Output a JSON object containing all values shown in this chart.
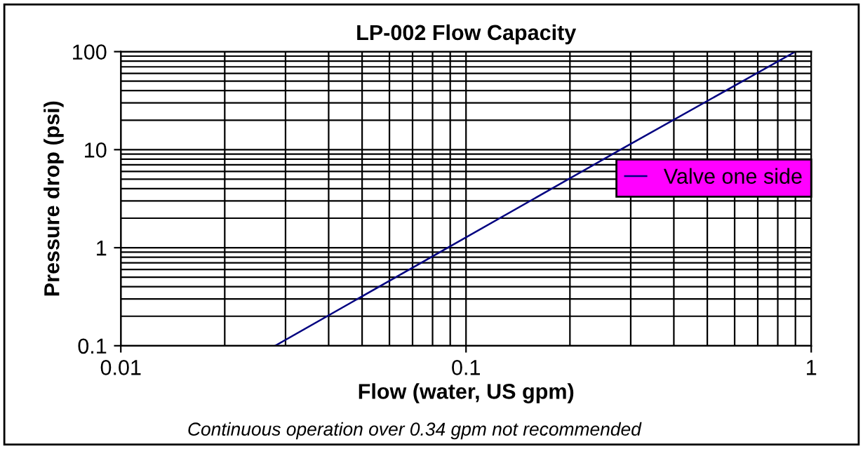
{
  "chart_data": {
    "type": "line",
    "title": "LP-002 Flow Capacity",
    "xlabel": "Flow (water, US gpm)",
    "ylabel": "Pressure drop (psi)",
    "annotations": [
      "Continuous operation over 0.34 gpm not recommended"
    ],
    "series": [
      {
        "name": "Valve one side",
        "color": "#000080",
        "x": [
          0.028,
          0.0885,
          0.28,
          0.9
        ],
        "values": [
          0.1,
          1,
          10,
          100
        ]
      }
    ],
    "log": "xy",
    "xlim": [
      0.01,
      1
    ],
    "ylim": [
      0.1,
      100
    ],
    "xticks": [
      0.01,
      0.1,
      1
    ],
    "yticks": [
      0.1,
      1,
      10,
      100
    ],
    "grid": true,
    "legend": "right",
    "marker": "none",
    "line_style": "solid"
  }
}
